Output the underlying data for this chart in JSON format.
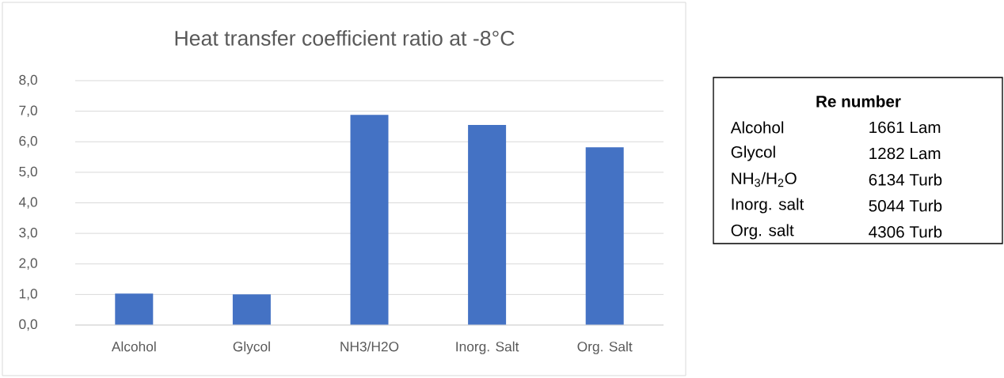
{
  "chart_data": {
    "type": "bar",
    "title": "Heat transfer coefficient ratio at -8°C",
    "categories": [
      "Alcohol",
      "Glycol",
      "NH3/H2O",
      "Inorg. Salt",
      "Org. Salt"
    ],
    "values": [
      1.03,
      1.0,
      6.88,
      6.55,
      5.82
    ],
    "color": "#4472c4",
    "ylim": [
      0,
      8
    ],
    "yticks": [
      {
        "value": 0,
        "label": "0,0"
      },
      {
        "value": 1,
        "label": "1,0"
      },
      {
        "value": 2,
        "label": "2,0"
      },
      {
        "value": 3,
        "label": "3,0"
      },
      {
        "value": 4,
        "label": "4,0"
      },
      {
        "value": 5,
        "label": "5,0"
      },
      {
        "value": 6,
        "label": "6,0"
      },
      {
        "value": 7,
        "label": "7,0"
      },
      {
        "value": 8,
        "label": "8,0"
      }
    ],
    "grid": "y",
    "annotations": [
      "Re number",
      "Alcohol",
      "1661 Lam",
      "Glycol",
      "1282 Lam",
      "NH$_{3}$/H$_{2}$O",
      "6134 Turb",
      "Inorg. salt",
      "5044 Turb",
      "Org. salt",
      "4306 Turb"
    ]
  }
}
